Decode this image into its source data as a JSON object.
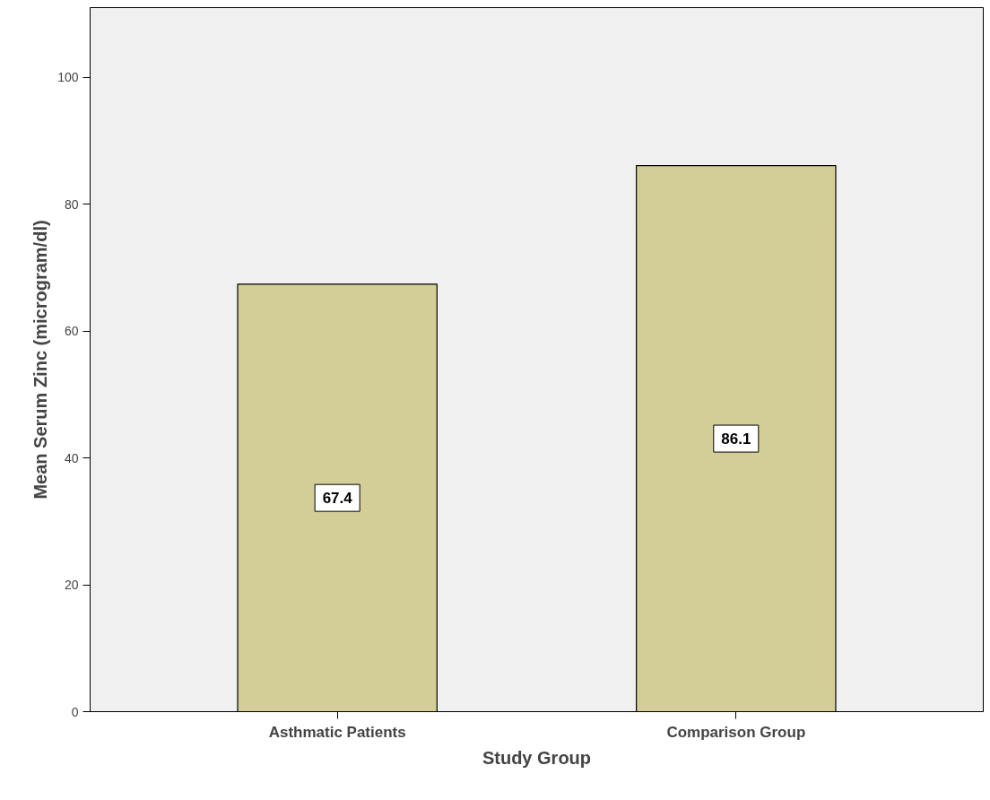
{
  "chart_data": {
    "type": "bar",
    "xlabel": "Study Group",
    "ylabel": "Mean Serum Zinc (microgram/dl)",
    "categories": [
      "Asthmatic Patients",
      "Comparison Group"
    ],
    "values": [
      67.4,
      86.1
    ],
    "color": "#d3ce97",
    "ylim": [
      0,
      111
    ],
    "yticks": [
      0,
      20,
      40,
      60,
      80,
      100
    ],
    "grid": false,
    "data_labels": true
  }
}
